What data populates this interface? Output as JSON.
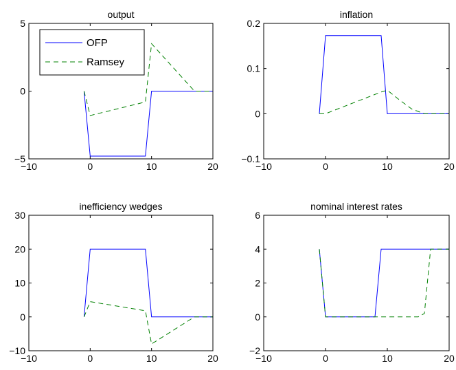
{
  "chart_data": [
    {
      "type": "line",
      "title": "output",
      "xlim": [
        -10,
        20
      ],
      "ylim": [
        -5,
        5
      ],
      "xticks": [
        "-10",
        "0",
        "10",
        "20"
      ],
      "yticks": [
        "-5",
        "0",
        "5"
      ],
      "legend": {
        "placement": "top-left",
        "entries": [
          "OFP",
          "Ramsey"
        ]
      },
      "series": [
        {
          "name": "OFP",
          "color": "#0000ff",
          "style": "solid",
          "x": [
            -1,
            0,
            9,
            10,
            20
          ],
          "y": [
            0,
            -4.8,
            -4.8,
            0,
            0
          ]
        },
        {
          "name": "Ramsey",
          "color": "#008000",
          "style": "dashed",
          "x": [
            -1,
            0,
            9,
            10,
            17,
            20
          ],
          "y": [
            0,
            -1.8,
            -0.8,
            3.5,
            0,
            0
          ]
        }
      ]
    },
    {
      "type": "line",
      "title": "inflation",
      "xlim": [
        -10,
        20
      ],
      "ylim": [
        -0.1,
        0.2
      ],
      "xticks": [
        "-10",
        "0",
        "10",
        "20"
      ],
      "yticks": [
        "-0.1",
        "0",
        "0.1",
        "0.2"
      ],
      "series": [
        {
          "name": "OFP",
          "color": "#0000ff",
          "style": "solid",
          "x": [
            -1,
            0,
            9,
            10,
            20
          ],
          "y": [
            0,
            0.173,
            0.173,
            0,
            0
          ]
        },
        {
          "name": "Ramsey",
          "color": "#008000",
          "style": "dashed",
          "x": [
            -1,
            0,
            9,
            10,
            12,
            14,
            16,
            20
          ],
          "y": [
            0,
            0,
            0.048,
            0.052,
            0.03,
            0.01,
            0,
            0
          ]
        }
      ]
    },
    {
      "type": "line",
      "title": "inefficiency wedges",
      "xlim": [
        -10,
        20
      ],
      "ylim": [
        -10,
        30
      ],
      "xticks": [
        "-10",
        "0",
        "10",
        "20"
      ],
      "yticks": [
        "-10",
        "0",
        "10",
        "20",
        "30"
      ],
      "series": [
        {
          "name": "OFP",
          "color": "#0000ff",
          "style": "solid",
          "x": [
            -1,
            0,
            9,
            10,
            20
          ],
          "y": [
            0,
            20,
            20,
            0,
            0
          ]
        },
        {
          "name": "Ramsey",
          "color": "#008000",
          "style": "dashed",
          "x": [
            -1,
            0,
            9,
            10,
            17,
            20
          ],
          "y": [
            0,
            4.5,
            1.8,
            -8,
            0,
            0
          ]
        }
      ]
    },
    {
      "type": "line",
      "title": "nominal interest rates",
      "xlim": [
        -10,
        20
      ],
      "ylim": [
        -2,
        6
      ],
      "xticks": [
        "-10",
        "0",
        "10",
        "20"
      ],
      "yticks": [
        "-2",
        "0",
        "2",
        "4",
        "6"
      ],
      "series": [
        {
          "name": "OFP",
          "color": "#0000ff",
          "style": "solid",
          "x": [
            -1,
            0,
            8,
            9,
            20
          ],
          "y": [
            4,
            0,
            0,
            4,
            4
          ]
        },
        {
          "name": "Ramsey",
          "color": "#008000",
          "style": "dashed",
          "x": [
            -1,
            0,
            15,
            16,
            17,
            20
          ],
          "y": [
            4,
            0,
            0,
            0.2,
            4,
            4
          ]
        }
      ]
    }
  ]
}
